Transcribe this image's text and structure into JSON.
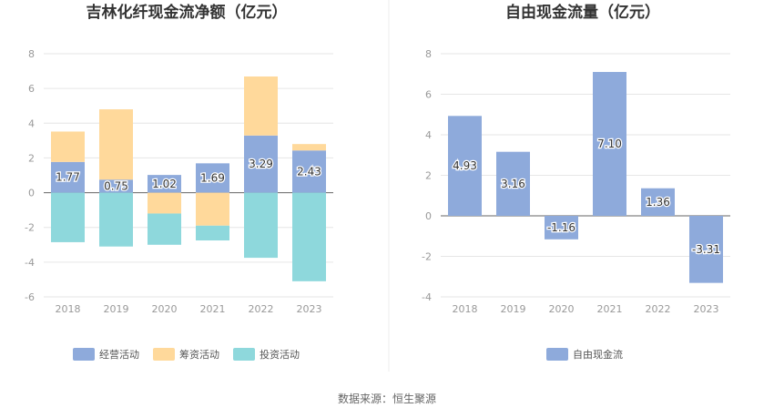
{
  "chart_data": [
    {
      "type": "bar",
      "stacked": true,
      "title": "吉林化纤现金流净额（亿元）",
      "categories": [
        "2018",
        "2019",
        "2020",
        "2021",
        "2022",
        "2023"
      ],
      "ylim": [
        -6,
        8
      ],
      "yticks": [
        "8",
        "6",
        "4",
        "2",
        "0",
        "-2",
        "-4",
        "-6"
      ],
      "grid": true,
      "legend_position": "bottom",
      "series": [
        {
          "name": "经营活动",
          "color": "#8eaadb",
          "values": [
            1.77,
            0.75,
            1.02,
            1.69,
            3.29,
            2.43
          ],
          "labels": [
            "1.77",
            "0.75",
            "1.02",
            "1.69",
            "3.29",
            "2.43"
          ]
        },
        {
          "name": "筹资活动",
          "color": "#ffd99b",
          "values": [
            1.75,
            4.05,
            -1.2,
            -1.9,
            3.4,
            0.37
          ]
        },
        {
          "name": "投资活动",
          "color": "#8ed8dc",
          "values": [
            -2.85,
            -3.1,
            -1.8,
            -0.85,
            -3.75,
            -5.1
          ]
        }
      ]
    },
    {
      "type": "bar",
      "title": "自由现金流量（亿元）",
      "categories": [
        "2018",
        "2019",
        "2020",
        "2021",
        "2022",
        "2023"
      ],
      "ylim": [
        -4,
        8
      ],
      "yticks": [
        "8",
        "6",
        "4",
        "2",
        "0",
        "-2",
        "-4"
      ],
      "grid": true,
      "legend_position": "bottom",
      "series": [
        {
          "name": "自由现金流",
          "color": "#8eaadb",
          "values": [
            4.93,
            3.16,
            -1.16,
            7.1,
            1.36,
            -3.31
          ],
          "labels": [
            "4.93",
            "3.16",
            "-1.16",
            "7.10",
            "1.36",
            "-3.31"
          ]
        }
      ]
    }
  ],
  "source": "数据来源：恒生聚源"
}
